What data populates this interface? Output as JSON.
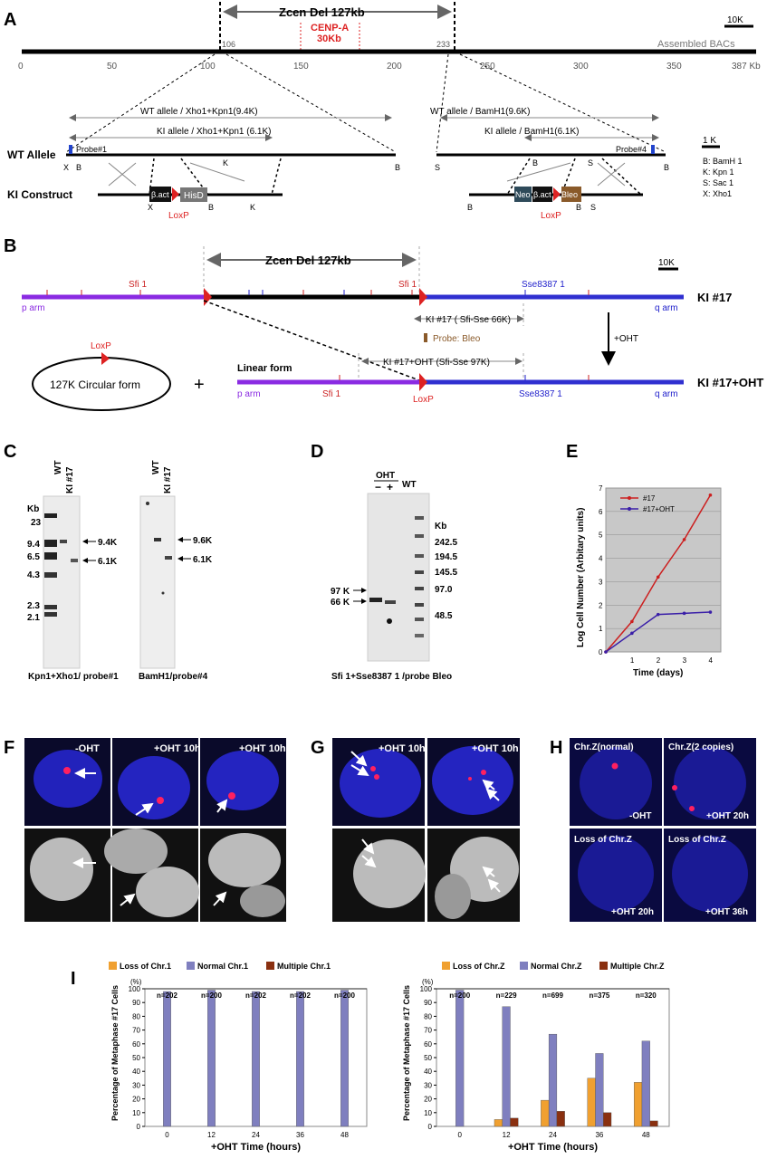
{
  "panels": {
    "A": "A",
    "B": "B",
    "C": "C",
    "D": "D",
    "E": "E",
    "F": "F",
    "G": "G",
    "H": "H",
    "I": "I"
  },
  "panelA": {
    "zcen": "Zcen Del 127kb",
    "scale": "10K",
    "cenpa_1": "CENP-A",
    "cenpa_2": "30Kb",
    "pos106": "106",
    "pos233": "233",
    "assembled": "Assembled BACs",
    "ticks": [
      "0",
      "50",
      "100",
      "150",
      "200",
      "250",
      "300",
      "350",
      "387 Kb"
    ],
    "wt_allele": "WT Allele",
    "ki_construct": "KI Construct",
    "wt_xho": "WT allele / Xho1+Kpn1(9.4K)",
    "ki_xho": "KI allele / Xho1+Kpn1 (6.1K)",
    "wt_bam": "WT allele / BamH1(9.6K)",
    "ki_bam": "KI allele / BamH1(6.1K)",
    "probe1": "Probe#1",
    "probe4": "Probe#4",
    "bact": "β.act",
    "hisd": "HisD",
    "neo": "Neo",
    "bleo": "Bleo",
    "loxp": "LoxP",
    "scale1k": "1 K",
    "legend": [
      "B:  BamH 1",
      "K:  Kpn 1",
      "S:  Sac 1",
      "X:  Xho1"
    ],
    "site_X": "X",
    "site_B": "B",
    "site_K": "K",
    "site_S": "S"
  },
  "panelB": {
    "zcen": "Zcen Del 127kb",
    "scale": "10K",
    "sfi1": "Sfi 1",
    "sse": "Sse8387 1",
    "p_arm": "p arm",
    "q_arm": "q arm",
    "ki17": "KI #17",
    "ki17oht": "KI #17+OHT",
    "ki_sfisse": "KI #17 ( Sfi-Sse 66K)",
    "probe_bleo": "Probe: Bleo",
    "oht": "+OHT",
    "ki_oht_sfisse": "KI #17+OHT  (Sfi-Sse  97K)",
    "linear": "Linear form",
    "circular": "127K Circular form",
    "loxp": "LoxP",
    "plus": "+"
  },
  "panelC": {
    "kb": "Kb",
    "markers": [
      "23",
      "9.4",
      "6.5",
      "4.3",
      "2.3",
      "2.1"
    ],
    "lanes": [
      "WT",
      "KI #17"
    ],
    "band1": "9.4K",
    "band2": "6.1K",
    "band3": "9.6K",
    "band4": "6.1K",
    "caption1": "Kpn1+Xho1/ probe#1",
    "caption2": "BamH1/probe#4"
  },
  "panelD": {
    "oht": "OHT",
    "minus": "−",
    "plus": "+",
    "wt": "WT",
    "kb": "Kb",
    "markers": [
      "242.5",
      "194.5",
      "145.5",
      "97.0",
      "48.5"
    ],
    "k97": "97 K",
    "k66": "66 K",
    "caption": "Sfi 1+Sse8387 1 /probe Bleo"
  },
  "chart_data": {
    "type": "line",
    "x": [
      0,
      1,
      2,
      3,
      4
    ],
    "series": [
      {
        "name": "#17",
        "values": [
          0,
          1.3,
          3.2,
          4.8,
          6.7
        ],
        "color": "#cc1f1f"
      },
      {
        "name": "#17+OHT",
        "values": [
          0,
          0.8,
          1.6,
          1.65,
          1.7
        ],
        "color": "#3a1fa8"
      }
    ],
    "xlabel": "Time (days)",
    "ylabel": "Log Cell Number   (Arbitary units)",
    "ylim": [
      0,
      7
    ],
    "xticks": [
      "1",
      "2",
      "3",
      "4"
    ],
    "yticks": [
      "0",
      "1",
      "2",
      "3",
      "4",
      "5",
      "6",
      "7"
    ],
    "background": "#c8c8c8",
    "grid": true,
    "legend": "top-left"
  },
  "panelF": {
    "labels": [
      "-OHT",
      "+OHT 10h",
      "+OHT 10h"
    ]
  },
  "panelG": {
    "labels": [
      "+OHT 10h",
      "+OHT 10h"
    ]
  },
  "panelH": {
    "labels": [
      "Chr.Z(normal)",
      "Chr.Z(2 copies)",
      "Loss of Chr.Z",
      "Loss of Chr.Z"
    ],
    "sub": [
      "-OHT",
      "+OHT 20h",
      "+OHT 20h",
      "+OHT 36h"
    ]
  },
  "panelI": {
    "colors": {
      "loss": "#f0a030",
      "normal": "#7f7fbf",
      "multiple": "#8a3010"
    },
    "left": {
      "legend": [
        "Loss of Chr.1",
        "Normal  Chr.1",
        "Multiple Chr.1"
      ],
      "n": [
        "n=202",
        "n=200",
        "n=202",
        "n=202",
        "n=200"
      ],
      "x": [
        "0",
        "12",
        "24",
        "36",
        "48"
      ],
      "loss": [
        0,
        0,
        0,
        0,
        0
      ],
      "normal": [
        98,
        99,
        98,
        98,
        99
      ],
      "multiple": [
        0,
        0,
        0,
        0,
        0
      ],
      "xlabel": "+OHT Time (hours)",
      "ylabel": "Percentage of  Metaphase #17 Cells",
      "unit": "(%)",
      "yticks": [
        "0",
        "10",
        "20",
        "30",
        "40",
        "50",
        "60",
        "70",
        "80",
        "90",
        "100"
      ]
    },
    "right": {
      "legend": [
        "Loss of Chr.Z",
        "Normal  Chr.Z",
        "Multiple Chr.Z"
      ],
      "n": [
        "n=200",
        "n=229",
        "n=699",
        "n=375",
        "n=320"
      ],
      "x": [
        "0",
        "12",
        "24",
        "36",
        "48"
      ],
      "loss": [
        0,
        5,
        19,
        35,
        32
      ],
      "normal": [
        99,
        87,
        67,
        53,
        62
      ],
      "multiple": [
        0,
        6,
        11,
        10,
        4
      ],
      "xlabel": "+OHT Time (hours)",
      "ylabel": "Percentage of  Metaphase #17 Cells",
      "unit": "(%)",
      "yticks": [
        "0",
        "10",
        "20",
        "30",
        "40",
        "50",
        "60",
        "70",
        "80",
        "90",
        "100"
      ]
    }
  }
}
